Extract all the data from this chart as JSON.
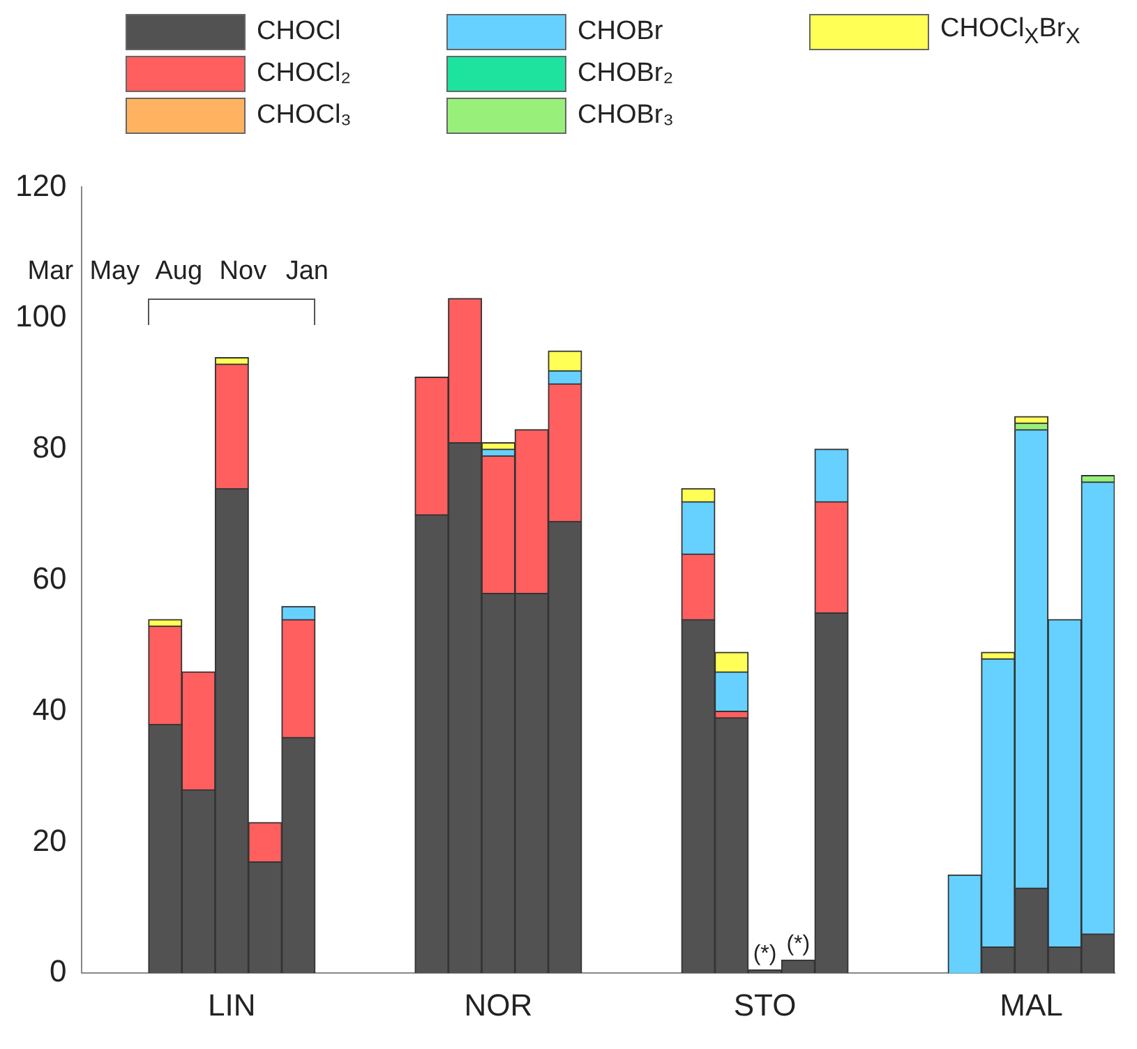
{
  "chart_data": {
    "type": "bar",
    "stacked": true,
    "legend": "top",
    "categories": [
      null,
      null,
      null,
      null,
      "LIN",
      null,
      null,
      null,
      null,
      null,
      null,
      null,
      "NOR",
      null,
      null,
      null,
      null,
      null,
      null,
      null,
      "STO",
      null,
      null,
      null,
      null,
      null,
      null,
      null,
      "MAL",
      null,
      null
    ],
    "series": [
      {
        "name": "CHOCl",
        "color": "#525252",
        "values": [
          null,
          null,
          38,
          28,
          74,
          17,
          36,
          null,
          null,
          null,
          70,
          81,
          58,
          58,
          69,
          null,
          null,
          null,
          54,
          39,
          0.5,
          2,
          55,
          null,
          null,
          null,
          null,
          4,
          13,
          4,
          6
        ],
        "value_labels": [
          null,
          null,
          null,
          null,
          null,
          null,
          null,
          null,
          null,
          null,
          null,
          null,
          null,
          null,
          null,
          null,
          null,
          null,
          null,
          null,
          "(*)",
          "(*)",
          null,
          null,
          null,
          null,
          null,
          null,
          null,
          null,
          null
        ]
      },
      {
        "name": "CHOCl₂",
        "color": "#ff5f5f",
        "values": [
          null,
          null,
          15,
          18,
          19,
          6,
          18,
          null,
          null,
          null,
          21,
          22,
          21,
          25,
          21,
          null,
          null,
          null,
          10,
          1,
          null,
          null,
          17,
          null,
          null,
          null,
          null,
          null,
          null,
          null,
          null
        ]
      },
      {
        "name": "CHOCl₃",
        "color": "#ffb360",
        "values": [
          null,
          null,
          null,
          null,
          null,
          null,
          null,
          null,
          null,
          null,
          null,
          null,
          null,
          null,
          null,
          null,
          null,
          null,
          null,
          null,
          null,
          null,
          null,
          null,
          null,
          null,
          null,
          null,
          null,
          null,
          null
        ]
      },
      {
        "name": "CHOBr",
        "color": "#66d1ff",
        "values": [
          null,
          null,
          null,
          null,
          null,
          null,
          2,
          null,
          null,
          null,
          null,
          null,
          1,
          null,
          2,
          null,
          null,
          null,
          8,
          6,
          null,
          null,
          8,
          null,
          null,
          null,
          15,
          44,
          70,
          50,
          69
        ]
      },
      {
        "name": "CHOBr₂",
        "color": "#1de39f",
        "values": [
          null,
          null,
          null,
          null,
          null,
          null,
          null,
          null,
          null,
          null,
          null,
          null,
          null,
          null,
          null,
          null,
          null,
          null,
          null,
          null,
          null,
          null,
          null,
          null,
          null,
          null,
          null,
          null,
          null,
          null,
          null
        ]
      },
      {
        "name": "CHOBr₃",
        "color": "#98f07a",
        "values": [
          null,
          null,
          null,
          null,
          null,
          null,
          null,
          null,
          null,
          null,
          null,
          null,
          null,
          null,
          null,
          null,
          null,
          null,
          null,
          null,
          null,
          null,
          null,
          null,
          null,
          null,
          null,
          null,
          1,
          null,
          1
        ]
      },
      {
        "name": "CHOCl$_{X}$Br$_{X}$",
        "color": "#ffff55",
        "values": [
          null,
          null,
          1,
          null,
          1,
          null,
          null,
          null,
          null,
          null,
          null,
          null,
          1,
          null,
          3,
          null,
          null,
          null,
          2,
          3,
          null,
          null,
          null,
          null,
          null,
          null,
          null,
          1,
          1,
          null,
          null
        ]
      }
    ],
    "ylim": [
      0,
      120
    ],
    "yticks": [
      0,
      20,
      40,
      60,
      80,
      100,
      120
    ],
    "annotations": [
      "Mar",
      "May",
      "Aug",
      "Nov",
      "Jan"
    ]
  }
}
